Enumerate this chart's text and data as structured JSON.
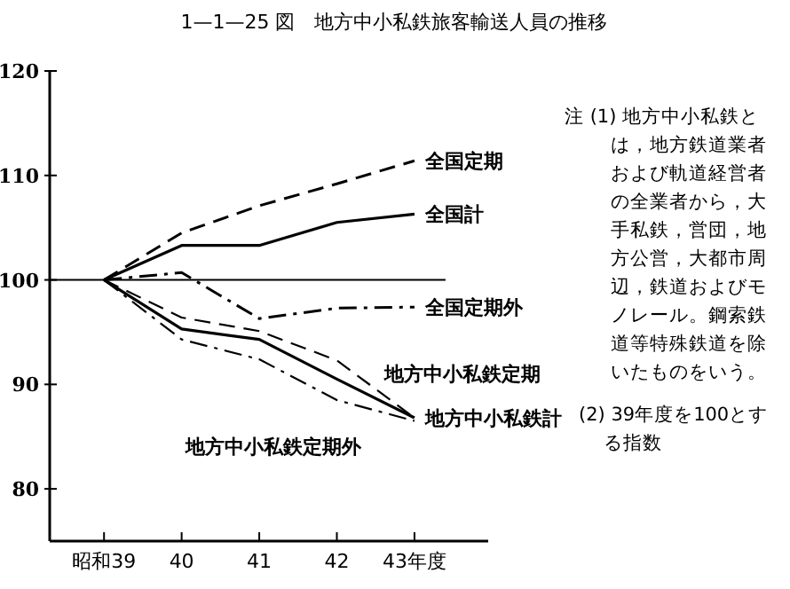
{
  "chart_data": {
    "type": "line",
    "title": "1—1—25 図　地方中小私鉄旅客輸送人員の推移",
    "categories": [
      "昭和39",
      "40",
      "41",
      "42",
      "43年度"
    ],
    "ylim": [
      75,
      120
    ],
    "yticks": [
      80,
      90,
      100,
      110,
      120
    ],
    "grid": false,
    "legend": false,
    "marker": "none",
    "series": [
      {
        "name": "全国定期",
        "color": "#000000",
        "line_style": "dashed",
        "values": [
          100,
          104.5,
          107.1,
          109.2,
          111.4
        ]
      },
      {
        "name": "全国計",
        "color": "#000000",
        "line_style": "solid",
        "values": [
          100,
          103.3,
          103.3,
          105.5,
          106.3
        ]
      },
      {
        "name": "全国定期外",
        "color": "#000000",
        "line_style": "dashdot",
        "values": [
          100,
          100.7,
          96.3,
          97.3,
          97.4
        ]
      },
      {
        "name": "地方中小私鉄定期",
        "color": "#000000",
        "line_style": "dashed",
        "values": [
          100,
          96.4,
          95.1,
          92.3,
          86.8
        ]
      },
      {
        "name": "地方中小私鉄計",
        "color": "#000000",
        "line_style": "solid",
        "values": [
          100,
          95.3,
          94.3,
          90.5,
          86.8
        ]
      },
      {
        "name": "地方中小私鉄定期外",
        "color": "#000000",
        "line_style": "dashdot",
        "values": [
          100,
          94.3,
          92.4,
          88.5,
          86.5
        ]
      }
    ],
    "ref_lines": [
      {
        "axis": "y",
        "value": 100,
        "color": "#000000"
      }
    ],
    "annotations": [
      "注 (1) 地方中小私鉄とは，地方鉄道業者および軌道経営者の全業者から，大手私鉄，営団，地方公営，大都市周辺，鉄道およびモノレール。鋼索鉄道等特殊鉄道を除いたものをいう。",
      "(2) 39年度を100とする指数"
    ]
  }
}
